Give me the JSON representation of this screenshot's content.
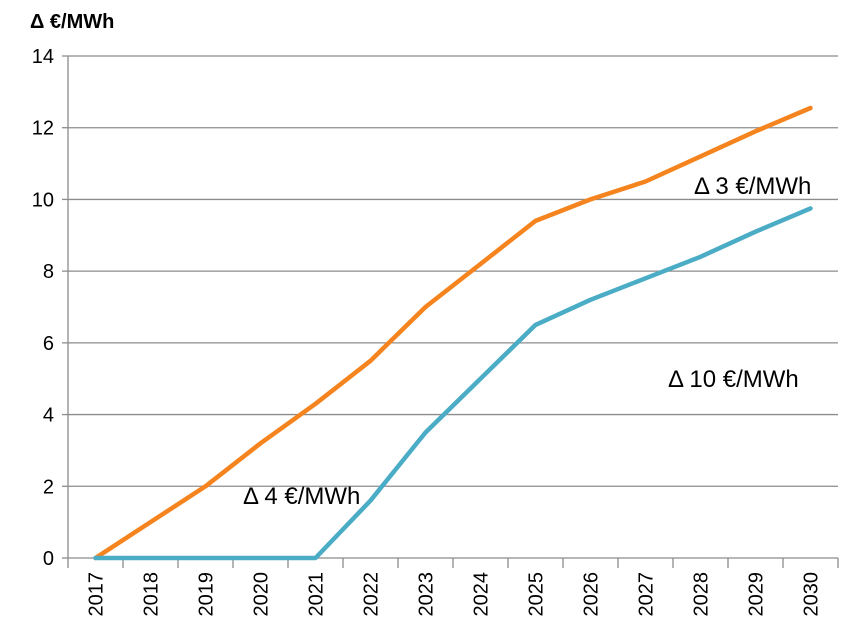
{
  "chart_data": {
    "type": "line",
    "title": "",
    "xlabel": "",
    "ylabel": "Δ €/MWh",
    "categories": [
      "2017",
      "2018",
      "2019",
      "2020",
      "2021",
      "2022",
      "2023",
      "2024",
      "2025",
      "2026",
      "2027",
      "2028",
      "2029",
      "2030"
    ],
    "ylim": [
      0,
      14
    ],
    "yticks": [
      0,
      2,
      4,
      6,
      8,
      10,
      12,
      14
    ],
    "grid": true,
    "legend": "none",
    "series": [
      {
        "color": "#F5841F",
        "values": [
          0,
          1.0,
          2.0,
          3.2,
          4.3,
          5.5,
          7.0,
          8.2,
          9.4,
          10.0,
          10.5,
          11.2,
          11.9,
          12.55
        ]
      },
      {
        "color": "#4BACC6",
        "values": [
          0,
          0,
          0,
          0,
          0,
          1.6,
          3.5,
          5.0,
          6.5,
          7.2,
          7.8,
          8.4,
          9.1,
          9.75
        ]
      }
    ],
    "annotations": [
      {
        "text": "Δ 3 €/MWh"
      },
      {
        "text": "Δ 10 €/MWh"
      },
      {
        "text": "Δ 4 €/MWh"
      }
    ]
  }
}
